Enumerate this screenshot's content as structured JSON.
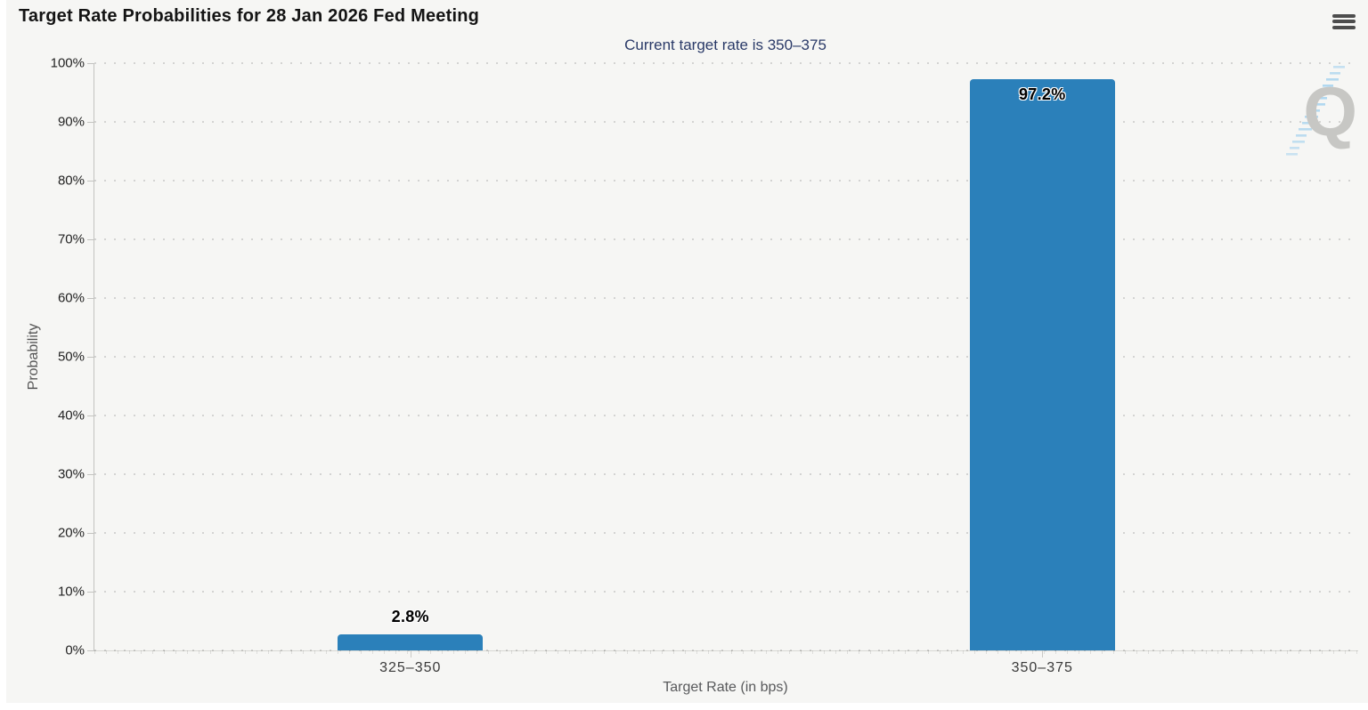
{
  "header": {
    "title": "Target Rate Probabilities for 28 Jan 2026 Fed Meeting",
    "menu_icon": "hamburger-icon"
  },
  "watermark": {
    "letter": "Q"
  },
  "chart_data": {
    "type": "bar",
    "title": "Target Rate Probabilities for 28 Jan 2026 Fed Meeting",
    "subtitle": "Current target rate is 350–375",
    "xlabel": "Target Rate (in bps)",
    "ylabel": "Probability",
    "categories": [
      "325–350",
      "350–375"
    ],
    "values": [
      2.8,
      97.2
    ],
    "data_labels": [
      "2.8%",
      "97.2%"
    ],
    "ylim": [
      0,
      100
    ],
    "ytick_step": 10,
    "ytick_labels": [
      "0%",
      "10%",
      "20%",
      "30%",
      "40%",
      "50%",
      "60%",
      "70%",
      "80%",
      "90%",
      "100%"
    ],
    "grid": "dotted-horizontal",
    "legend": "none",
    "bar_color": "#2b80ba"
  }
}
